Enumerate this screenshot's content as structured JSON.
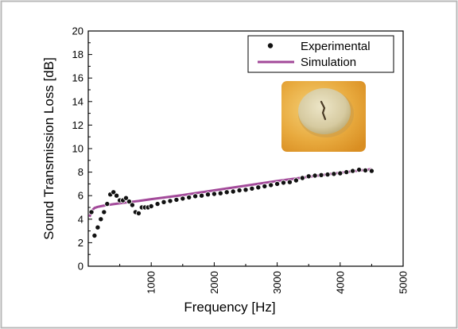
{
  "chart_data": {
    "type": "line",
    "xlabel": "Frequency [Hz]",
    "ylabel": "Sound Transmission Loss [dB]",
    "xlim": [
      0,
      5000
    ],
    "ylim": [
      0,
      20
    ],
    "x_ticks": [
      1000,
      2000,
      3000,
      4000,
      5000
    ],
    "y_ticks": [
      0,
      2,
      4,
      6,
      8,
      10,
      12,
      14,
      16,
      18,
      20
    ],
    "grid": false,
    "legend_position": "top-right",
    "inset_image": "photo of a circular felt-like fiber sample on an orange-yellow background",
    "colors": {
      "experimental": "#111111",
      "simulation": "#a34a9a",
      "inset_bg": "#e6a93c"
    },
    "series": [
      {
        "name": "Experimental",
        "style": "scatter",
        "x": [
          50,
          100,
          150,
          200,
          250,
          300,
          350,
          400,
          450,
          500,
          550,
          600,
          650,
          700,
          750,
          800,
          850,
          900,
          950,
          1000,
          1100,
          1200,
          1300,
          1400,
          1500,
          1600,
          1700,
          1800,
          1900,
          2000,
          2100,
          2200,
          2300,
          2400,
          2500,
          2600,
          2700,
          2800,
          2900,
          3000,
          3100,
          3200,
          3300,
          3400,
          3500,
          3600,
          3700,
          3800,
          3900,
          4000,
          4100,
          4200,
          4300,
          4400,
          4500
        ],
        "y": [
          4.6,
          2.6,
          3.3,
          4.0,
          4.6,
          5.3,
          6.1,
          6.3,
          6.0,
          5.6,
          5.6,
          5.8,
          5.5,
          5.2,
          4.6,
          4.5,
          5.0,
          5.0,
          5.0,
          5.1,
          5.3,
          5.45,
          5.55,
          5.65,
          5.75,
          5.85,
          5.95,
          6.0,
          6.1,
          6.15,
          6.2,
          6.3,
          6.35,
          6.45,
          6.5,
          6.6,
          6.7,
          6.8,
          6.9,
          7.0,
          7.1,
          7.15,
          7.3,
          7.5,
          7.65,
          7.7,
          7.75,
          7.8,
          7.85,
          7.9,
          8.0,
          8.1,
          8.2,
          8.15,
          8.1
        ]
      },
      {
        "name": "Simulation",
        "style": "line",
        "x": [
          20,
          60,
          100,
          150,
          200,
          300,
          400,
          600,
          800,
          1000,
          1500,
          2000,
          2500,
          3000,
          3500,
          4000,
          4500
        ],
        "y": [
          4.2,
          4.75,
          4.95,
          5.05,
          5.1,
          5.2,
          5.28,
          5.42,
          5.55,
          5.7,
          6.05,
          6.45,
          6.85,
          7.25,
          7.6,
          7.95,
          8.25
        ]
      }
    ]
  }
}
